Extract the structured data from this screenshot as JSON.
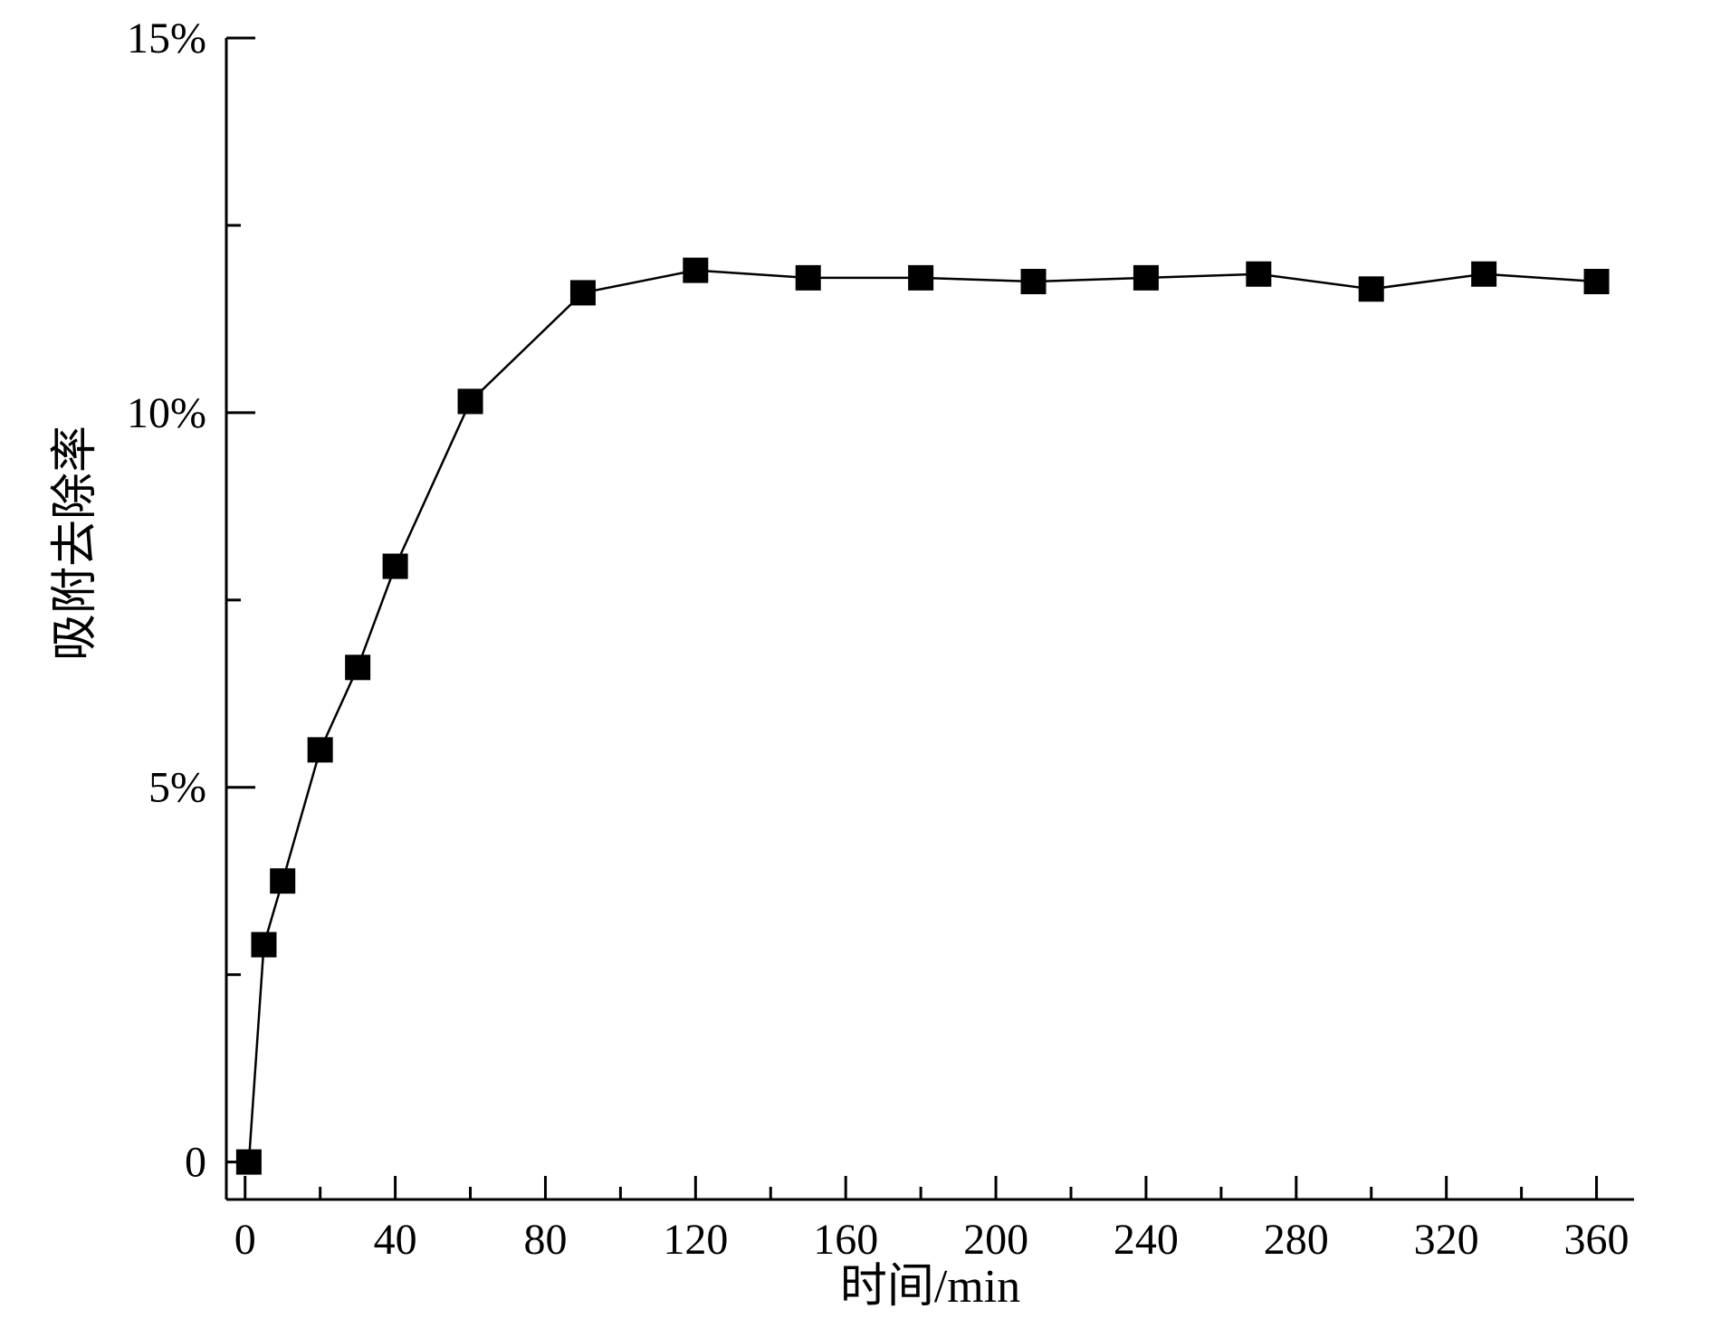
{
  "chart_data": {
    "type": "line",
    "title": "",
    "xlabel": "时间/min",
    "ylabel": "吸附去除率",
    "xlim": [
      -5,
      370
    ],
    "ylim": [
      -0.5,
      15
    ],
    "x_ticks": [
      0,
      40,
      80,
      120,
      160,
      200,
      240,
      280,
      320,
      360
    ],
    "x_minor_ticks": [
      20,
      60,
      100,
      140,
      180,
      220,
      260,
      300,
      340
    ],
    "x_tick_labels": [
      "0",
      "40",
      "80",
      "120",
      "160",
      "200",
      "240",
      "280",
      "320",
      "360"
    ],
    "y_ticks": [
      0,
      5,
      10,
      15
    ],
    "y_minor_ticks": [
      2.5,
      7.5,
      12.5
    ],
    "y_tick_labels": [
      "0",
      "5%",
      "10%",
      "15%"
    ],
    "grid": false,
    "marker": "square",
    "color": "#000000",
    "series": [
      {
        "x": [
          1,
          5,
          10,
          20,
          30,
          40,
          60,
          90,
          120,
          150,
          180,
          210,
          240,
          270,
          300,
          330,
          360
        ],
        "values": [
          0,
          2.9,
          3.75,
          5.5,
          6.6,
          7.95,
          10.15,
          11.6,
          11.9,
          11.8,
          11.8,
          11.75,
          11.8,
          11.85,
          11.65,
          11.85,
          11.75
        ]
      }
    ]
  }
}
